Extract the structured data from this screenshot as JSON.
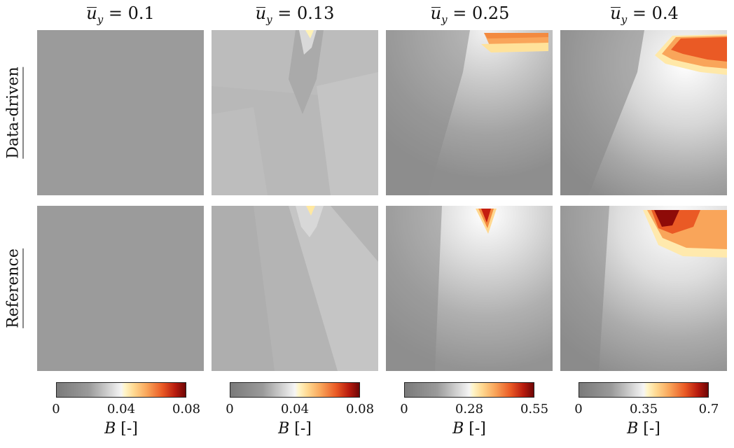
{
  "columns": [
    {
      "var": "u",
      "sub": "y",
      "value": "0.1"
    },
    {
      "var": "u",
      "sub": "y",
      "value": "0.13"
    },
    {
      "var": "u",
      "sub": "y",
      "value": "0.25"
    },
    {
      "var": "u",
      "sub": "y",
      "value": "0.4"
    }
  ],
  "rows": [
    "Data-driven",
    "Reference"
  ],
  "colorbars": [
    {
      "ticks": [
        "0",
        "0.04",
        "0.08"
      ],
      "label_var": "B",
      "label_unit": "[-]"
    },
    {
      "ticks": [
        "0",
        "0.04",
        "0.08"
      ],
      "label_var": "B",
      "label_unit": "[-]"
    },
    {
      "ticks": [
        "0",
        "0.28",
        "0.55"
      ],
      "label_var": "B",
      "label_unit": "[-]"
    },
    {
      "ticks": [
        "0",
        "0.35",
        "0.7"
      ],
      "label_var": "B",
      "label_unit": "[-]"
    }
  ],
  "colors": {
    "low": "#7a7a7a",
    "mid": "#f5f5f5",
    "light_yellow": "#fff5c8",
    "orange": "#f9a55a",
    "red": "#ea5a25",
    "dark_red": "#6e0606"
  }
}
